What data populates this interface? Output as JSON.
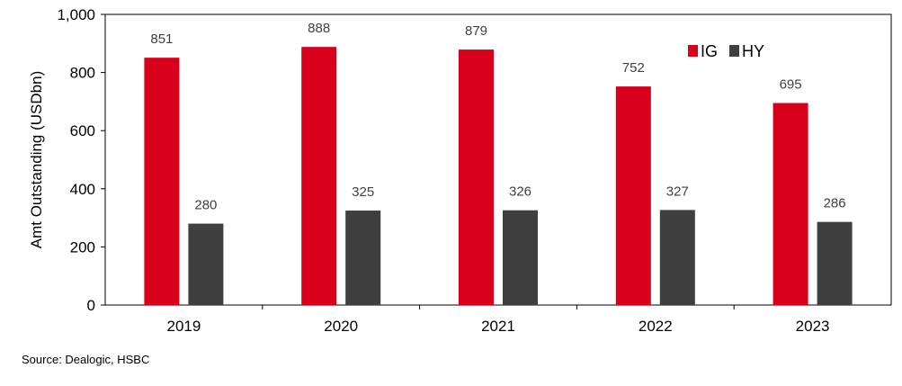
{
  "chart_data": {
    "type": "bar",
    "categories": [
      "2019",
      "2020",
      "2021",
      "2022",
      "2023"
    ],
    "series": [
      {
        "name": "IG",
        "values": [
          851,
          888,
          879,
          752,
          695
        ],
        "color": "#d9001b"
      },
      {
        "name": "HY",
        "values": [
          280,
          325,
          326,
          327,
          286
        ],
        "color": "#3f3f3f"
      }
    ],
    "ylabel": "Amt Outstanding (USDbn)",
    "xlabel": "",
    "title": "",
    "ylim": [
      0,
      1000
    ],
    "yticks": [
      0,
      200,
      400,
      600,
      800,
      1000
    ],
    "ytick_labels": [
      "0",
      "200",
      "400",
      "600",
      "800",
      "1,000"
    ],
    "grid": false,
    "legend_position": "top-right",
    "data_labels": true
  },
  "source": "Source: Dealogic, HSBC"
}
